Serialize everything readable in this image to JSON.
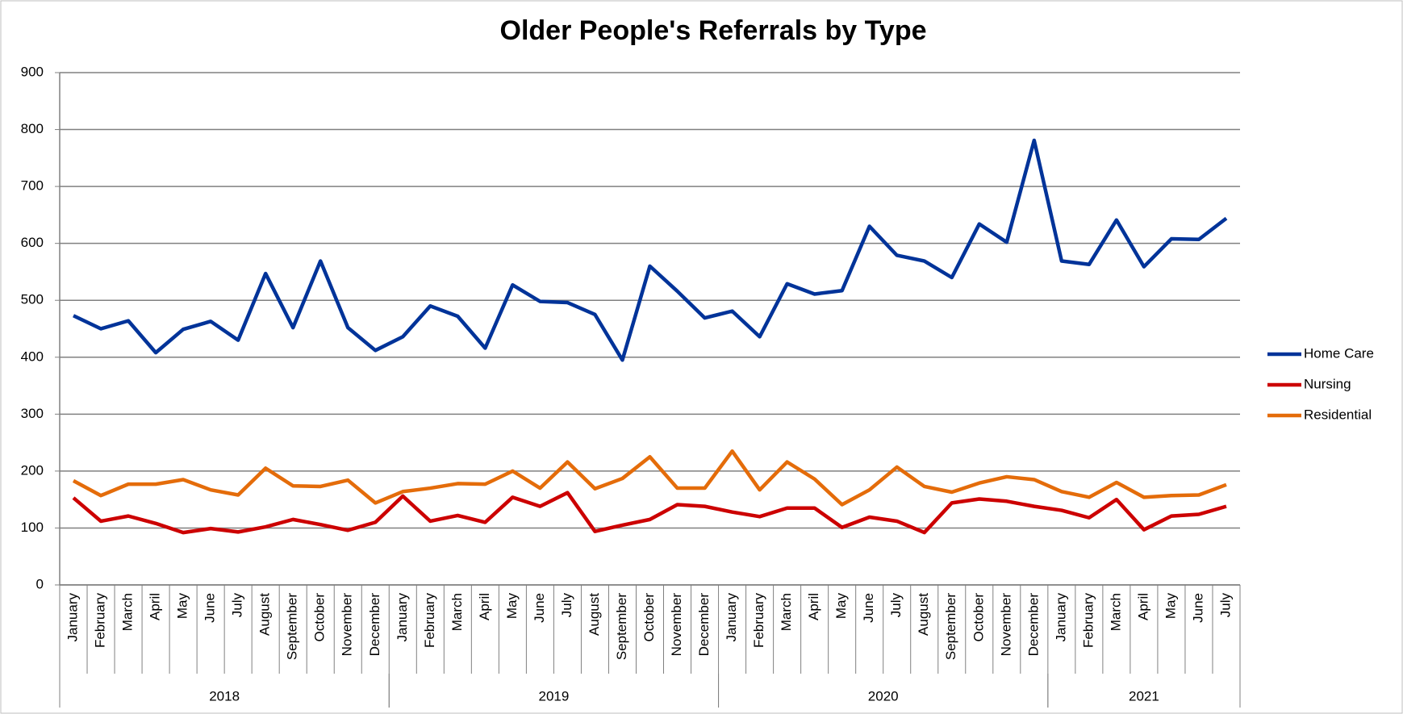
{
  "chart_data": {
    "type": "line",
    "title": "Older People's Referrals by Type",
    "categories": [
      "January",
      "February",
      "March",
      "April",
      "May",
      "June",
      "July",
      "August",
      "September",
      "October",
      "November",
      "December",
      "January",
      "February",
      "March",
      "April",
      "May",
      "June",
      "July",
      "August",
      "September",
      "October",
      "November",
      "December",
      "January",
      "February",
      "March",
      "April",
      "May",
      "June",
      "July",
      "August",
      "September",
      "October",
      "November",
      "December",
      "January",
      "February",
      "March",
      "April",
      "May",
      "June",
      "July"
    ],
    "years": [
      "2018",
      "2019",
      "2020",
      "2021"
    ],
    "series": [
      {
        "name": "Home Care",
        "color": "#003399",
        "values": [
          473,
          450,
          464,
          408,
          449,
          463,
          430,
          547,
          452,
          569,
          452,
          412,
          436,
          490,
          472,
          416,
          527,
          498,
          496,
          475,
          395,
          560,
          516,
          469,
          481,
          436,
          529,
          511,
          517,
          630,
          579,
          569,
          540,
          634,
          602,
          781,
          569,
          563,
          641,
          559,
          608,
          607,
          644
        ]
      },
      {
        "name": "Nursing",
        "color": "#cc0000",
        "values": [
          153,
          112,
          121,
          108,
          92,
          99,
          93,
          102,
          115,
          106,
          96,
          110,
          156,
          112,
          122,
          110,
          154,
          138,
          162,
          94,
          105,
          115,
          141,
          138,
          128,
          120,
          135,
          135,
          101,
          119,
          112,
          92,
          144,
          151,
          147,
          138,
          131,
          118,
          150,
          97,
          121,
          124,
          138
        ]
      },
      {
        "name": "Residential",
        "color": "#e46c0a",
        "values": [
          183,
          157,
          177,
          177,
          185,
          167,
          158,
          205,
          174,
          173,
          184,
          144,
          164,
          170,
          178,
          177,
          200,
          170,
          216,
          169,
          187,
          225,
          170,
          170,
          235,
          167,
          216,
          186,
          141,
          167,
          207,
          173,
          163,
          179,
          190,
          185,
          164,
          154,
          180,
          154,
          157,
          158,
          176
        ]
      }
    ],
    "ylim": [
      0,
      900
    ],
    "yticks": [
      0,
      100,
      200,
      300,
      400,
      500,
      600,
      700,
      800,
      900
    ],
    "grid": true,
    "legend": "right"
  }
}
